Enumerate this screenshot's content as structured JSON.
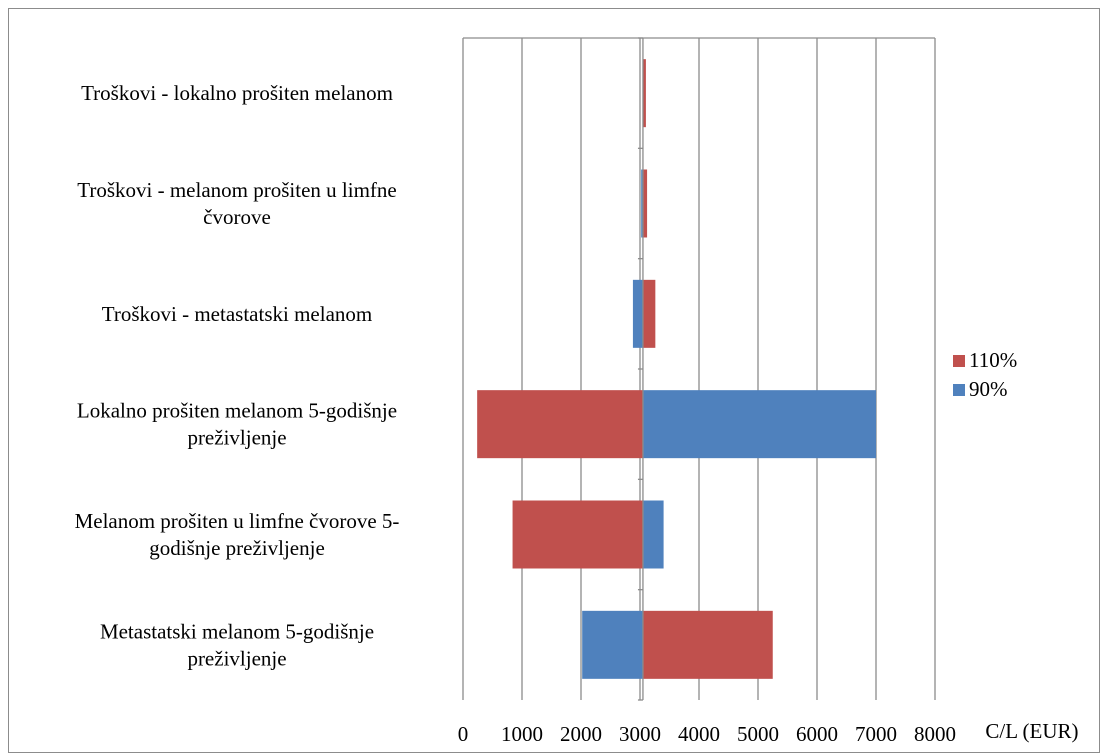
{
  "chart_data": {
    "type": "bar",
    "orientation": "horizontal",
    "subtype": "tornado",
    "base_value": 3050,
    "xlim": [
      0,
      8000
    ],
    "x_ticks": [
      0,
      1000,
      2000,
      3000,
      4000,
      5000,
      6000,
      7000,
      8000
    ],
    "xlabel": "C/L (EUR)",
    "ylabel": "",
    "grid": true,
    "legend_position": "right",
    "categories": [
      [
        "Troškovi - lokalno prošiten melanom"
      ],
      [
        "Troškovi - melanom prošiten u limfne",
        "čvorove"
      ],
      [
        "Troškovi - metastatski melanom"
      ],
      [
        "Lokalno prošiten melanom 5-godišnje",
        "preživljenje"
      ],
      [
        "Melanom prošiten u limfne čvorove 5-",
        "godišnje preživljenje"
      ],
      [
        "Metastatski melanom 5-godišnje",
        "preživljenje"
      ]
    ],
    "series": [
      {
        "name": "110%",
        "color": "#c0504d",
        "ranges": [
          [
            3050,
            3100
          ],
          [
            3050,
            3120
          ],
          [
            3050,
            3260
          ],
          [
            240,
            3050
          ],
          [
            840,
            3050
          ],
          [
            3050,
            5250
          ]
        ]
      },
      {
        "name": "90%",
        "color": "#4f81bd",
        "ranges": [
          [
            3050,
            3050
          ],
          [
            3020,
            3050
          ],
          [
            2880,
            3050
          ],
          [
            3050,
            7000
          ],
          [
            3050,
            3400
          ],
          [
            2020,
            3050
          ]
        ]
      }
    ]
  }
}
